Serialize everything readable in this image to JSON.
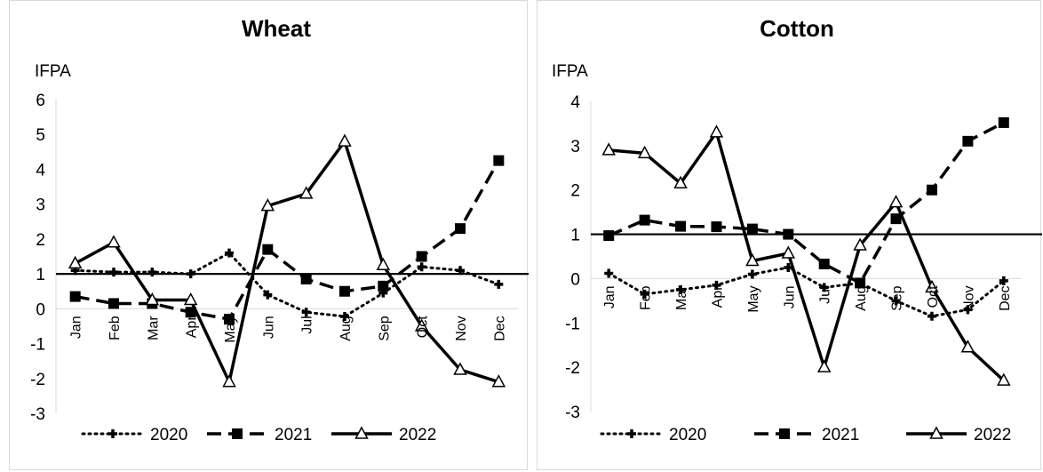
{
  "chart_data": [
    {
      "type": "line",
      "title": "Wheat",
      "ylabel": "IFPA",
      "ylim": [
        -3,
        6
      ],
      "yticks": [
        "-3",
        "-2",
        "-1",
        "0",
        "1",
        "2",
        "3",
        "4",
        "5",
        "6"
      ],
      "categories": [
        "Jan",
        "Feb",
        "Mar",
        "Apr",
        "May",
        "Jun",
        "Jul",
        "Aug",
        "Sep",
        "Oct",
        "Nov",
        "Dec"
      ],
      "reference_line": 1,
      "series": [
        {
          "name": "2020",
          "style": "dotted",
          "marker": "plus",
          "values": [
            1.1,
            1.05,
            1.05,
            1.0,
            1.6,
            0.4,
            -0.1,
            -0.22,
            0.45,
            1.2,
            1.1,
            0.7
          ]
        },
        {
          "name": "2021",
          "style": "dashed",
          "marker": "square",
          "values": [
            0.35,
            0.15,
            0.15,
            -0.1,
            -0.3,
            1.7,
            0.85,
            0.5,
            0.65,
            1.5,
            2.3,
            4.25
          ]
        },
        {
          "name": "2022",
          "style": "solid",
          "marker": "triangle",
          "values": [
            1.3,
            1.9,
            0.25,
            0.25,
            -2.1,
            2.95,
            3.3,
            4.8,
            1.25,
            -0.5,
            -1.75,
            -2.1
          ]
        }
      ]
    },
    {
      "type": "line",
      "title": "Cotton",
      "ylabel": "IFPA",
      "ylim": [
        -3,
        4
      ],
      "yticks": [
        "-3",
        "-2",
        "-1",
        "0",
        "1",
        "2",
        "3",
        "4"
      ],
      "categories": [
        "Jan",
        "Feb",
        "Mar",
        "Apr",
        "May",
        "Jun",
        "Jul",
        "Aug",
        "Sep",
        "Oct",
        "Nov",
        "Dec"
      ],
      "reference_line": 1,
      "series": [
        {
          "name": "2020",
          "style": "dotted",
          "marker": "plus",
          "values": [
            0.12,
            -0.35,
            -0.25,
            -0.15,
            0.1,
            0.25,
            -0.2,
            -0.1,
            -0.5,
            -0.85,
            -0.7,
            -0.05
          ]
        },
        {
          "name": "2021",
          "style": "dashed",
          "marker": "square",
          "values": [
            0.97,
            1.32,
            1.18,
            1.17,
            1.12,
            1.0,
            0.33,
            -0.1,
            1.35,
            2.0,
            3.1,
            3.52
          ]
        },
        {
          "name": "2022",
          "style": "solid",
          "marker": "triangle",
          "values": [
            2.9,
            2.83,
            2.15,
            3.3,
            0.4,
            0.57,
            -2.0,
            0.75,
            1.72,
            -0.2,
            -1.55,
            -2.3
          ]
        }
      ]
    }
  ],
  "colors": {
    "line": "#000000",
    "axis": "#d9d9d9",
    "border": "#d9d9d9",
    "background": "#ffffff"
  }
}
